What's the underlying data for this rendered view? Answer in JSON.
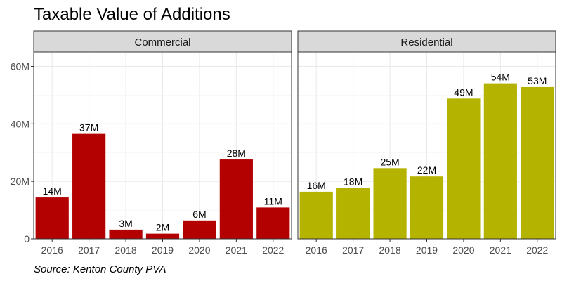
{
  "chart_data": {
    "type": "bar",
    "title": "Taxable Value of Additions",
    "caption": "Source: Kenton County PVA",
    "xlabel": "",
    "ylabel": "",
    "ylim": [
      0,
      65
    ],
    "y_ticks": [
      0,
      20,
      40,
      60
    ],
    "y_tick_labels": [
      "0",
      "20M",
      "40M",
      "60M"
    ],
    "grid": true,
    "legend": "none",
    "categories": [
      "2016",
      "2017",
      "2018",
      "2019",
      "2020",
      "2021",
      "2022"
    ],
    "panels": [
      {
        "name": "Commercial",
        "color": "#b30000",
        "values": [
          14.4,
          36.5,
          3.2,
          1.8,
          6.4,
          27.6,
          10.9
        ],
        "labels": [
          "14M",
          "37M",
          "3M",
          "2M",
          "6M",
          "28M",
          "11M"
        ]
      },
      {
        "name": "Residential",
        "color": "#b4b400",
        "values": [
          16.4,
          17.7,
          24.6,
          21.7,
          48.8,
          54.1,
          52.8
        ],
        "labels": [
          "16M",
          "18M",
          "25M",
          "22M",
          "49M",
          "54M",
          "53M"
        ]
      }
    ]
  }
}
